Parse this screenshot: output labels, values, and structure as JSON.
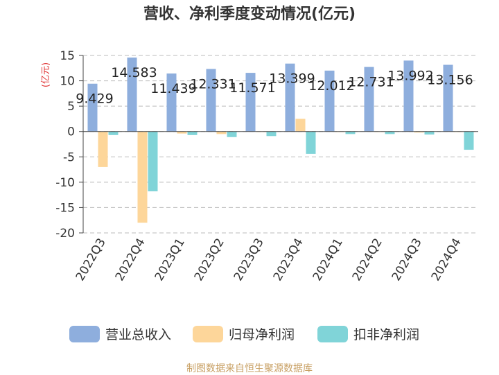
{
  "chart_data": {
    "type": "bar",
    "title": "营收、净利季度变动情况(亿元)",
    "ylabel": "(亿元)",
    "ylim": [
      -20,
      15
    ],
    "yticks": [
      15,
      10,
      5,
      0,
      -5,
      -10,
      -15,
      -20
    ],
    "categories": [
      "2022Q3",
      "2022Q4",
      "2023Q1",
      "2023Q2",
      "2023Q3",
      "2023Q4",
      "2024Q1",
      "2024Q2",
      "2024Q3",
      "2024Q4"
    ],
    "series": [
      {
        "name": "营业总收入",
        "color": "#8eaedd",
        "values": [
          9.429,
          14.583,
          11.439,
          12.331,
          11.571,
          13.399,
          12.012,
          12.731,
          13.992,
          13.156
        ],
        "labels": [
          "9.429",
          "14.583",
          "11.439",
          "12.331",
          "11.571",
          "13.399",
          "12.012",
          "12.731",
          "13.992",
          "13.156"
        ]
      },
      {
        "name": "归母净利润",
        "color": "#fdd69a",
        "values": [
          -7.0,
          -18.0,
          -0.4,
          -0.5,
          -0.1,
          2.5,
          -0.1,
          -0.1,
          -0.2,
          -0.1
        ]
      },
      {
        "name": "扣非净利润",
        "color": "#80d4d8",
        "values": [
          -0.7,
          -11.8,
          -0.7,
          -1.1,
          -0.9,
          -4.4,
          -0.5,
          -0.5,
          -0.6,
          -3.6
        ]
      }
    ],
    "grid": true,
    "legend": "bottom"
  },
  "source_note": "制图数据来自恒生聚源数据库"
}
